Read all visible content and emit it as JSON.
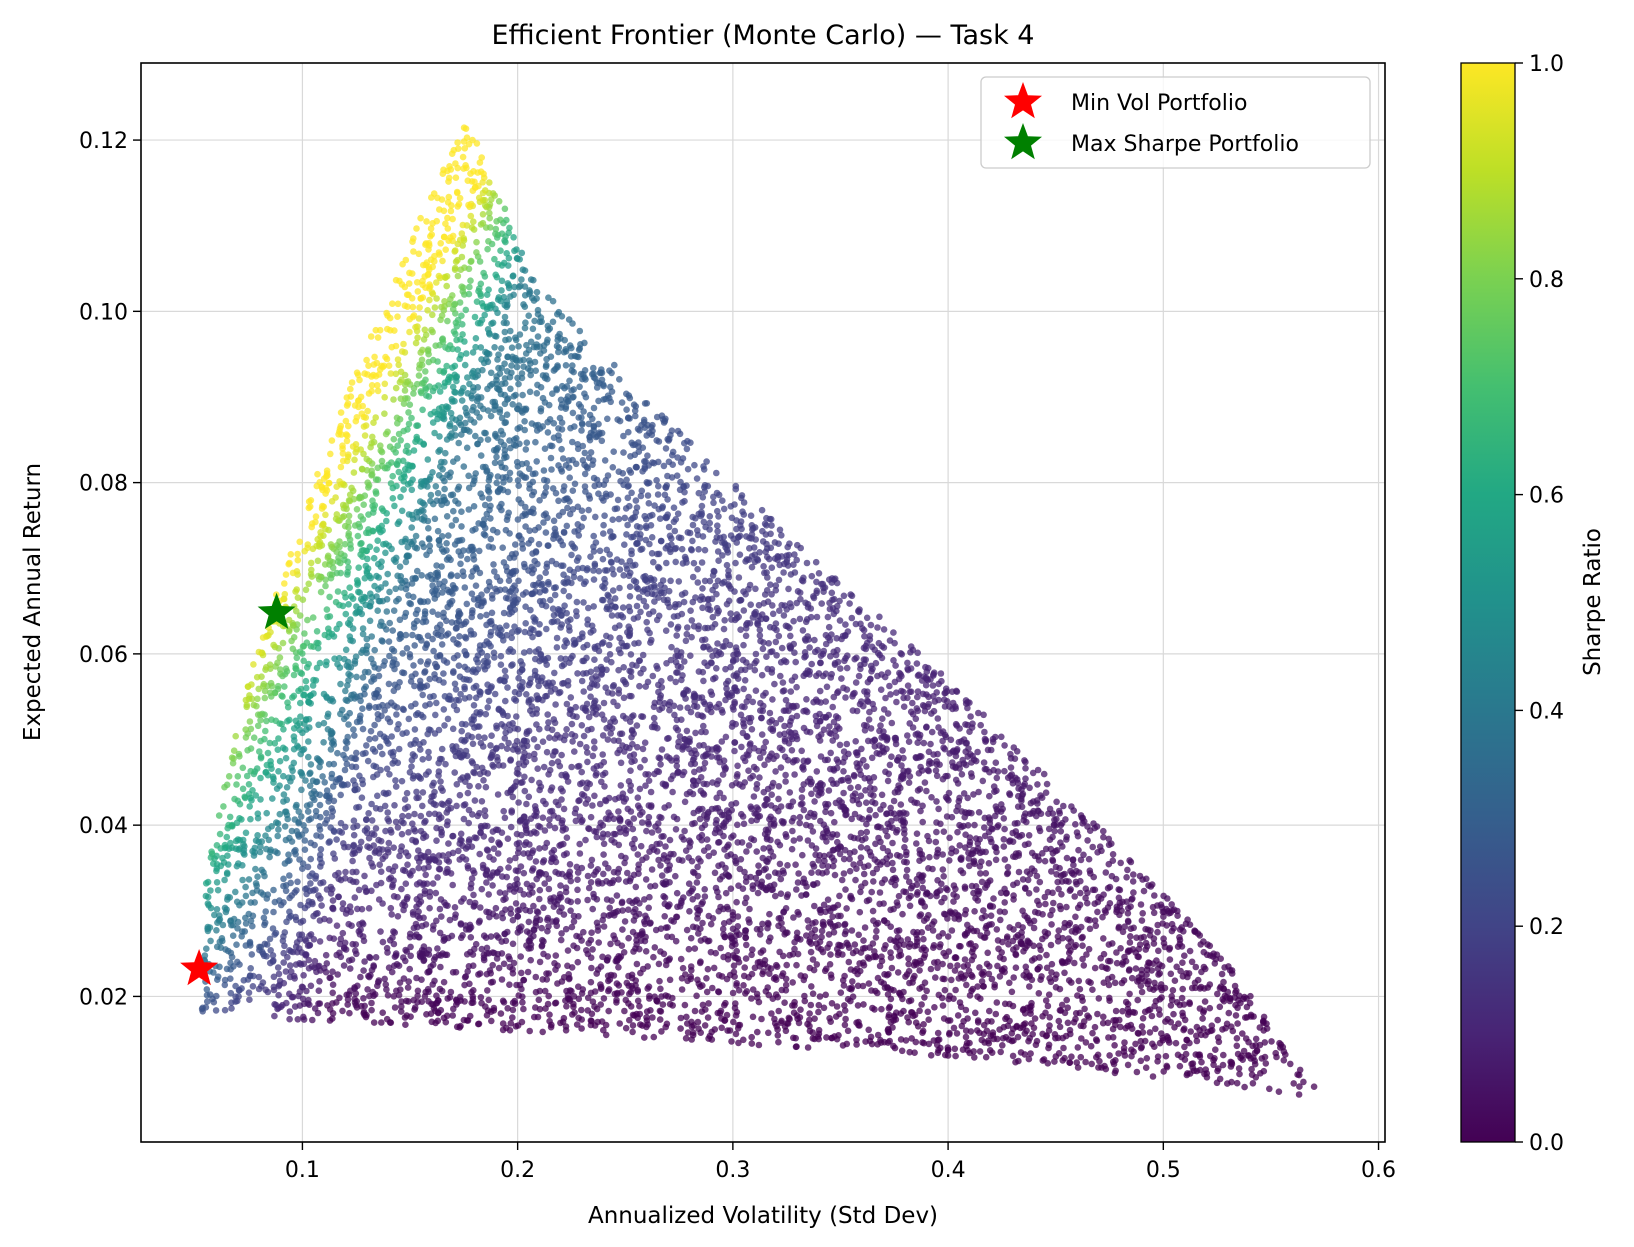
{
  "chart_data": {
    "type": "scatter",
    "title": "Efficient Frontier (Monte Carlo) — Task 4",
    "xlabel": "Annualized Volatility (Std Dev)",
    "ylabel": "Expected Annual Return",
    "xlim": [
      0.025,
      0.603
    ],
    "ylim": [
      0.003,
      0.129
    ],
    "xticks": [
      0.1,
      0.2,
      0.3,
      0.4,
      0.5,
      0.6
    ],
    "xtick_labels": [
      "0.1",
      "0.2",
      "0.3",
      "0.4",
      "0.5",
      "0.6"
    ],
    "yticks": [
      0.02,
      0.04,
      0.06,
      0.08,
      0.1,
      0.12
    ],
    "ytick_labels": [
      "0.02",
      "0.04",
      "0.06",
      "0.08",
      "0.10",
      "0.12"
    ],
    "grid": true,
    "legend_position": "top-right",
    "colormap": "viridis",
    "colorbar": {
      "label": "Sharpe Ratio",
      "range": [
        0.0,
        1.0
      ],
      "ticks": [
        0.0,
        0.2,
        0.4,
        0.6,
        0.8,
        1.0
      ],
      "tick_labels": [
        "0.0",
        "0.2",
        "0.4",
        "0.6",
        "0.8",
        "1.0"
      ]
    },
    "cloud_outline": [
      [
        0.053,
        0.018
      ],
      [
        0.052,
        0.025
      ],
      [
        0.055,
        0.033
      ],
      [
        0.063,
        0.045
      ],
      [
        0.078,
        0.06
      ],
      [
        0.095,
        0.072
      ],
      [
        0.115,
        0.087
      ],
      [
        0.14,
        0.102
      ],
      [
        0.16,
        0.114
      ],
      [
        0.178,
        0.123
      ],
      [
        0.193,
        0.113
      ],
      [
        0.21,
        0.103
      ],
      [
        0.24,
        0.095
      ],
      [
        0.3,
        0.08
      ],
      [
        0.4,
        0.057
      ],
      [
        0.47,
        0.04
      ],
      [
        0.53,
        0.024
      ],
      [
        0.575,
        0.008
      ],
      [
        0.52,
        0.01
      ],
      [
        0.4,
        0.013
      ],
      [
        0.3,
        0.0145
      ],
      [
        0.2,
        0.016
      ],
      [
        0.12,
        0.017
      ],
      [
        0.08,
        0.0175
      ]
    ],
    "series": [
      {
        "name": "Min Vol Portfolio",
        "marker": "star",
        "color": "#ff0000",
        "x": [
          0.052
        ],
        "y": [
          0.0232
        ]
      },
      {
        "name": "Max Sharpe Portfolio",
        "marker": "star",
        "color": "#008000",
        "x": [
          0.088
        ],
        "y": [
          0.0648
        ]
      }
    ]
  }
}
